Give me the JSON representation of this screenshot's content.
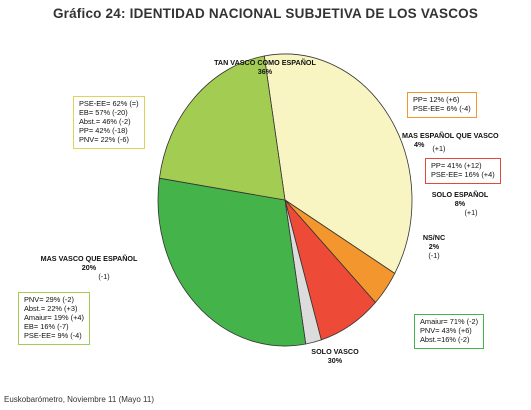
{
  "title": "Gráfico 24: IDENTIDAD NACIONAL SUBJETIVA DE LOS VASCOS",
  "source": "Euskobarómetro, Noviembre 11 (Mayo 11)",
  "chart_data": {
    "type": "pie",
    "title": "Gráfico 24: IDENTIDAD NACIONAL SUBJETIVA DE LOS VASCOS",
    "slices": [
      {
        "label": "TAN VASCO COMO ESPAÑOL",
        "value": 36,
        "value_text": "36%",
        "change_text": "",
        "color": "#f8f5c2"
      },
      {
        "label": "MAS ESPAÑOL QUE VASCO",
        "value": 4,
        "value_text": "4%",
        "change_text": "(+1)",
        "color": "#f4962e"
      },
      {
        "label": "SOLO ESPAÑOL",
        "value": 8,
        "value_text": "8%",
        "change_text": "(+1)",
        "color": "#ee4a38"
      },
      {
        "label": "NS/NC",
        "value": 2,
        "value_text": "2%",
        "change_text": "(-1)",
        "color": "#dcdcdc"
      },
      {
        "label": "SOLO VASCO",
        "value": 30,
        "value_text": "30%",
        "change_text": "",
        "color": "#44b34a"
      },
      {
        "label": "MAS VASCO QUE ESPAÑOL",
        "value": 20,
        "value_text": "20%",
        "change_text": "(-1)",
        "color": "#a3cc52"
      }
    ],
    "annotations": [
      {
        "key": "tan",
        "border": "#e1d25a",
        "lines": [
          "PSE-EE= 62% (=)",
          "EB= 57% (-20)",
          "Abst.= 46% (-2)",
          "PP= 42% (-18)",
          "PNV= 22% (-6)"
        ]
      },
      {
        "key": "masesp",
        "border": "#f4962e",
        "lines": [
          "PP= 12% (+6)",
          "PSE-EE= 6% (-4)"
        ]
      },
      {
        "key": "soloesp",
        "border": "#e04a38",
        "lines": [
          "PP= 41% (+12)",
          "PSE-EE= 16% (+4)"
        ]
      },
      {
        "key": "masvasco",
        "border": "#a3cc52",
        "lines": [
          "PNV= 29% (-2)",
          "Abst.= 22% (+3)",
          "Amaiur= 19% (+4)",
          "EB= 16% (-7)",
          "PSE-EE= 9% (-4)"
        ]
      },
      {
        "key": "solovasco",
        "border": "#44b34a",
        "lines": [
          "Amaiur= 71% (-2)",
          "PNV= 43% (+6)",
          "Abst.=16% (-2)"
        ]
      }
    ]
  }
}
